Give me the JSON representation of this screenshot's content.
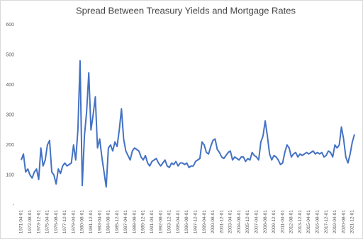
{
  "chart_data": {
    "type": "line",
    "title": "Spread Between Treasury Yields and Mortgage Rates",
    "categories": [
      "1971-04-01",
      null,
      null,
      null,
      "1972-08-01",
      null,
      null,
      null,
      "1973-12-01",
      null,
      null,
      null,
      "1975-04-01",
      null,
      null,
      null,
      "1976-08-01",
      null,
      null,
      null,
      "1977-12-01",
      null,
      null,
      null,
      "1979-04-01",
      null,
      null,
      null,
      "1980-08-01",
      null,
      null,
      null,
      "1981-12-01",
      null,
      null,
      null,
      "1983-04-01",
      null,
      null,
      null,
      "1984-08-01",
      null,
      null,
      null,
      "1985-12-01",
      null,
      null,
      null,
      "1987-04-01",
      null,
      null,
      null,
      "1988-08-01",
      null,
      null,
      null,
      "1989-12-01",
      null,
      null,
      null,
      "1991-04-01",
      null,
      null,
      null,
      "1992-08-01",
      null,
      null,
      null,
      "1993-12-01",
      null,
      null,
      null,
      "1995-04-01",
      null,
      null,
      null,
      "1996-08-01",
      null,
      null,
      null,
      "1997-12-01",
      null,
      null,
      null,
      "1999-04-01",
      null,
      null,
      null,
      "2000-08-01",
      null,
      null,
      null,
      "2001-12-01",
      null,
      null,
      null,
      "2003-04-01",
      null,
      null,
      null,
      "2004-08-01",
      null,
      null,
      null,
      "2005-12-01",
      null,
      null,
      null,
      "2007-04-01",
      null,
      null,
      null,
      "2008-08-01",
      null,
      null,
      null,
      "2009-12-01",
      null,
      null,
      null,
      "2011-04-01",
      null,
      null,
      null,
      "2012-08-01",
      null,
      null,
      null,
      "2013-12-01",
      null,
      null,
      null,
      "2015-04-01",
      null,
      null,
      null,
      "2016-08-01",
      null,
      null,
      null,
      "2017-12-01",
      null,
      null,
      null,
      "2019-04-01",
      null,
      null,
      null,
      "2020-08-01",
      null,
      null,
      null,
      "2021-12-01",
      null
    ],
    "values": [
      150,
      170,
      110,
      120,
      100,
      90,
      110,
      120,
      85,
      190,
      130,
      150,
      200,
      215,
      110,
      100,
      70,
      120,
      105,
      130,
      140,
      130,
      135,
      140,
      200,
      150,
      250,
      480,
      65,
      230,
      310,
      440,
      250,
      300,
      360,
      190,
      220,
      160,
      110,
      60,
      190,
      200,
      180,
      210,
      195,
      250,
      320,
      220,
      180,
      165,
      150,
      180,
      190,
      185,
      180,
      160,
      150,
      165,
      140,
      130,
      145,
      150,
      155,
      140,
      130,
      140,
      150,
      130,
      125,
      140,
      135,
      145,
      130,
      140,
      140,
      135,
      140,
      125,
      130,
      130,
      145,
      150,
      155,
      210,
      200,
      175,
      170,
      195,
      215,
      220,
      185,
      175,
      160,
      155,
      165,
      175,
      180,
      150,
      160,
      155,
      150,
      160,
      160,
      145,
      155,
      150,
      175,
      165,
      160,
      150,
      210,
      230,
      280,
      230,
      170,
      150,
      165,
      160,
      150,
      135,
      140,
      175,
      200,
      190,
      160,
      170,
      175,
      160,
      170,
      165,
      170,
      175,
      170,
      175,
      180,
      170,
      175,
      170,
      175,
      160,
      165,
      180,
      175,
      160,
      200,
      190,
      200,
      260,
      220,
      160,
      140,
      170,
      210,
      235
    ],
    "color": "#4472c4",
    "ylim": [
      0,
      600
    ],
    "yticks": [
      {
        "value": 0,
        "label": "-"
      },
      100,
      200,
      300,
      400,
      500,
      600
    ],
    "grid": false
  }
}
